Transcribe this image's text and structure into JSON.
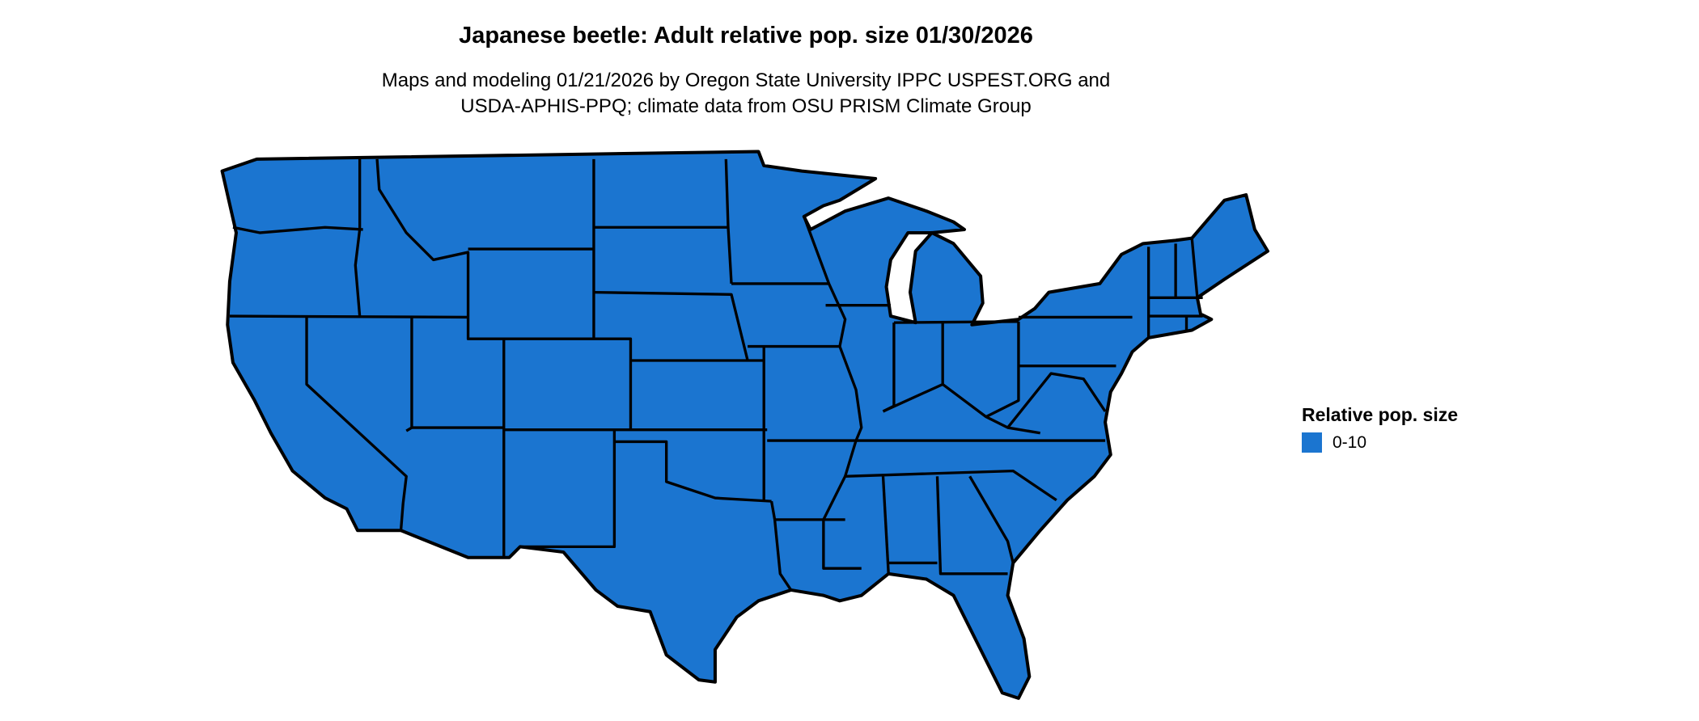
{
  "title": "Japanese beetle: Adult relative pop. size 01/30/2026",
  "subtitle": {
    "line1": "Maps and modeling 01/21/2026 by Oregon State University IPPC USPEST.ORG and",
    "line2": "USDA-APHIS-PPQ; climate data from OSU PRISM Climate Group"
  },
  "map": {
    "region": "Contiguous United States",
    "fill_color": "#1b75d0",
    "border_color": "#000000"
  },
  "legend": {
    "title": "Relative pop. size",
    "items": [
      {
        "label": "0-10",
        "color": "#1b75d0"
      }
    ]
  }
}
